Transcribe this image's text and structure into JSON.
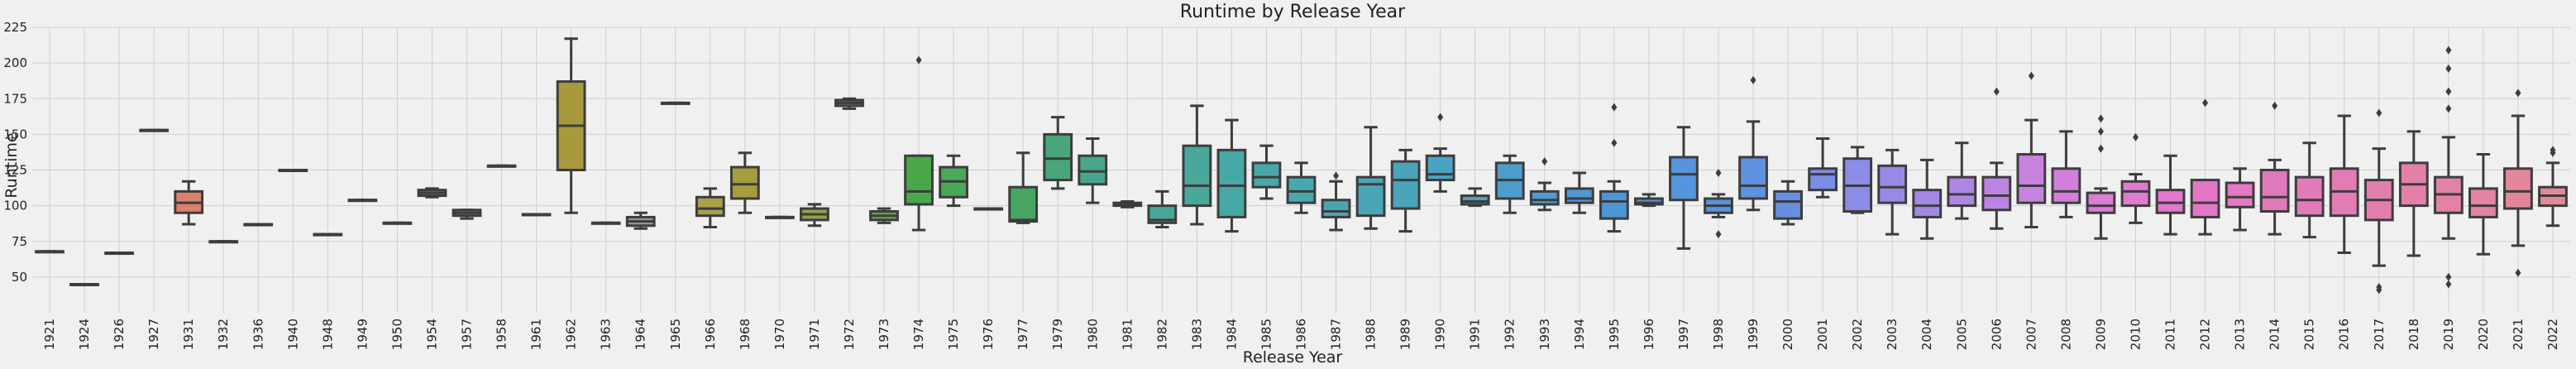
{
  "chart_data": {
    "type": "box",
    "title": "Runtime by Release Year",
    "xlabel": "Release Year",
    "ylabel": "Runtime",
    "ylim": [
      25,
      225
    ],
    "yticks": [
      50,
      75,
      100,
      125,
      150,
      175,
      200,
      225
    ],
    "grid": true,
    "categories": [
      "1921",
      "1924",
      "1926",
      "1927",
      "1931",
      "1932",
      "1936",
      "1940",
      "1948",
      "1949",
      "1950",
      "1954",
      "1957",
      "1958",
      "1961",
      "1962",
      "1963",
      "1964",
      "1965",
      "1966",
      "1968",
      "1970",
      "1971",
      "1972",
      "1973",
      "1974",
      "1975",
      "1976",
      "1977",
      "1979",
      "1980",
      "1981",
      "1982",
      "1983",
      "1984",
      "1985",
      "1986",
      "1987",
      "1988",
      "1989",
      "1990",
      "1991",
      "1992",
      "1993",
      "1994",
      "1995",
      "1996",
      "1997",
      "1998",
      "1999",
      "2000",
      "2001",
      "2002",
      "2003",
      "2004",
      "2005",
      "2006",
      "2007",
      "2008",
      "2009",
      "2010",
      "2011",
      "2012",
      "2013",
      "2014",
      "2015",
      "2016",
      "2017",
      "2018",
      "2019",
      "2020",
      "2021",
      "2022"
    ],
    "colors": [
      "#5a5a5a",
      "#5a5a5a",
      "#5a5a5a",
      "#5a5a5a",
      "#d9826a",
      "#5a5a5a",
      "#5a5a5a",
      "#5a5a5a",
      "#5a5a5a",
      "#5a5a5a",
      "#5a5a5a",
      "#7d7d7d",
      "#7d7d7d",
      "#5a5a5a",
      "#5a5a5a",
      "#a89a3c",
      "#5a5a5a",
      "#9a9a9a",
      "#5a5a5a",
      "#a8a04a",
      "#a49e3e",
      "#5a5a5a",
      "#8fa24a",
      "#7d7d7d",
      "#6aa44a",
      "#4aa84a",
      "#4aa858",
      "#5a5a5a",
      "#48a662",
      "#48a67a",
      "#48a68c",
      "#5a5a5a",
      "#48a698",
      "#48a89c",
      "#48a8a6",
      "#48a8a8",
      "#48a8ae",
      "#48a6b2",
      "#4aa6b6",
      "#4aa4ba",
      "#4ca2c2",
      "#4ea0c8",
      "#4e9ecc",
      "#4e9cd0",
      "#4e98d4",
      "#4c96d8",
      "#5094da",
      "#5694dc",
      "#5a92de",
      "#6090e0",
      "#688ee2",
      "#7a8ee4",
      "#8a8ce6",
      "#968ae6",
      "#a488e4",
      "#b086e4",
      "#bc84e2",
      "#c882e0",
      "#d47edc",
      "#dc7cd6",
      "#e07ad2",
      "#e278cc",
      "#e476c8",
      "#e478c2",
      "#e278bc",
      "#e27ab8",
      "#e27cb2",
      "#e27eae",
      "#e280aa",
      "#e282a6",
      "#e284a2",
      "#e2869e",
      "#e2889a"
    ],
    "boxes": [
      {
        "year": "1921",
        "min": 68,
        "q1": 68,
        "median": 68,
        "q3": 68,
        "max": 68,
        "outliers": []
      },
      {
        "year": "1924",
        "min": 45,
        "q1": 45,
        "median": 45,
        "q3": 45,
        "max": 45,
        "outliers": []
      },
      {
        "year": "1926",
        "min": 67,
        "q1": 67,
        "median": 67,
        "q3": 67,
        "max": 67,
        "outliers": []
      },
      {
        "year": "1927",
        "min": 153,
        "q1": 153,
        "median": 153,
        "q3": 153,
        "max": 153,
        "outliers": []
      },
      {
        "year": "1931",
        "min": 87,
        "q1": 95,
        "median": 102,
        "q3": 110,
        "max": 117,
        "outliers": []
      },
      {
        "year": "1932",
        "min": 75,
        "q1": 75,
        "median": 75,
        "q3": 75,
        "max": 75,
        "outliers": []
      },
      {
        "year": "1936",
        "min": 87,
        "q1": 87,
        "median": 87,
        "q3": 87,
        "max": 87,
        "outliers": []
      },
      {
        "year": "1940",
        "min": 125,
        "q1": 125,
        "median": 125,
        "q3": 125,
        "max": 125,
        "outliers": []
      },
      {
        "year": "1948",
        "min": 80,
        "q1": 80,
        "median": 80,
        "q3": 80,
        "max": 80,
        "outliers": []
      },
      {
        "year": "1949",
        "min": 104,
        "q1": 104,
        "median": 104,
        "q3": 104,
        "max": 104,
        "outliers": []
      },
      {
        "year": "1950",
        "min": 88,
        "q1": 88,
        "median": 88,
        "q3": 88,
        "max": 88,
        "outliers": []
      },
      {
        "year": "1954",
        "min": 106,
        "q1": 107,
        "median": 109,
        "q3": 111,
        "max": 112,
        "outliers": []
      },
      {
        "year": "1957",
        "min": 91,
        "q1": 93,
        "median": 95,
        "q3": 97,
        "max": 97,
        "outliers": []
      },
      {
        "year": "1958",
        "min": 128,
        "q1": 128,
        "median": 128,
        "q3": 128,
        "max": 128,
        "outliers": []
      },
      {
        "year": "1961",
        "min": 94,
        "q1": 94,
        "median": 94,
        "q3": 94,
        "max": 94,
        "outliers": []
      },
      {
        "year": "1962",
        "min": 95,
        "q1": 125,
        "median": 156,
        "q3": 187,
        "max": 217,
        "outliers": []
      },
      {
        "year": "1963",
        "min": 88,
        "q1": 88,
        "median": 88,
        "q3": 88,
        "max": 88,
        "outliers": []
      },
      {
        "year": "1964",
        "min": 84,
        "q1": 86,
        "median": 89,
        "q3": 92,
        "max": 95,
        "outliers": []
      },
      {
        "year": "1965",
        "min": 172,
        "q1": 172,
        "median": 172,
        "q3": 172,
        "max": 172,
        "outliers": []
      },
      {
        "year": "1966",
        "min": 85,
        "q1": 93,
        "median": 98,
        "q3": 106,
        "max": 112,
        "outliers": []
      },
      {
        "year": "1968",
        "min": 95,
        "q1": 105,
        "median": 115,
        "q3": 127,
        "max": 137,
        "outliers": []
      },
      {
        "year": "1970",
        "min": 92,
        "q1": 92,
        "median": 92,
        "q3": 92,
        "max": 92,
        "outliers": []
      },
      {
        "year": "1971",
        "min": 86,
        "q1": 90,
        "median": 94,
        "q3": 98,
        "max": 101,
        "outliers": []
      },
      {
        "year": "1972",
        "min": 168,
        "q1": 170,
        "median": 172,
        "q3": 174,
        "max": 175,
        "outliers": []
      },
      {
        "year": "1973",
        "min": 88,
        "q1": 90,
        "median": 93,
        "q3": 96,
        "max": 98,
        "outliers": []
      },
      {
        "year": "1974",
        "min": 83,
        "q1": 101,
        "median": 110,
        "q3": 135,
        "max": 135,
        "outliers": [
          202
        ]
      },
      {
        "year": "1975",
        "min": 100,
        "q1": 106,
        "median": 117,
        "q3": 127,
        "max": 135,
        "outliers": []
      },
      {
        "year": "1976",
        "min": 98,
        "q1": 98,
        "median": 98,
        "q3": 98,
        "max": 98,
        "outliers": []
      },
      {
        "year": "1977",
        "min": 88,
        "q1": 89,
        "median": 90,
        "q3": 113,
        "max": 137,
        "outliers": []
      },
      {
        "year": "1979",
        "min": 112,
        "q1": 118,
        "median": 133,
        "q3": 150,
        "max": 162,
        "outliers": []
      },
      {
        "year": "1980",
        "min": 102,
        "q1": 115,
        "median": 124,
        "q3": 135,
        "max": 147,
        "outliers": []
      },
      {
        "year": "1981",
        "min": 99,
        "q1": 100,
        "median": 101,
        "q3": 102,
        "max": 103,
        "outliers": []
      },
      {
        "year": "1982",
        "min": 85,
        "q1": 88,
        "median": 90,
        "q3": 100,
        "max": 110,
        "outliers": []
      },
      {
        "year": "1983",
        "min": 87,
        "q1": 100,
        "median": 114,
        "q3": 142,
        "max": 170,
        "outliers": []
      },
      {
        "year": "1984",
        "min": 82,
        "q1": 92,
        "median": 114,
        "q3": 139,
        "max": 160,
        "outliers": []
      },
      {
        "year": "1985",
        "min": 105,
        "q1": 113,
        "median": 120,
        "q3": 130,
        "max": 142,
        "outliers": []
      },
      {
        "year": "1986",
        "min": 95,
        "q1": 102,
        "median": 110,
        "q3": 120,
        "max": 130,
        "outliers": []
      },
      {
        "year": "1987",
        "min": 83,
        "q1": 92,
        "median": 96,
        "q3": 104,
        "max": 117,
        "outliers": [
          121
        ]
      },
      {
        "year": "1988",
        "min": 84,
        "q1": 93,
        "median": 115,
        "q3": 120,
        "max": 155,
        "outliers": []
      },
      {
        "year": "1989",
        "min": 82,
        "q1": 98,
        "median": 118,
        "q3": 131,
        "max": 139,
        "outliers": []
      },
      {
        "year": "1990",
        "min": 110,
        "q1": 118,
        "median": 122,
        "q3": 135,
        "max": 140,
        "outliers": [
          162
        ]
      },
      {
        "year": "1991",
        "min": 100,
        "q1": 101,
        "median": 103,
        "q3": 107,
        "max": 112,
        "outliers": []
      },
      {
        "year": "1992",
        "min": 95,
        "q1": 105,
        "median": 118,
        "q3": 130,
        "max": 135,
        "outliers": []
      },
      {
        "year": "1993",
        "min": 97,
        "q1": 101,
        "median": 104,
        "q3": 110,
        "max": 116,
        "outliers": [
          131
        ]
      },
      {
        "year": "1994",
        "min": 95,
        "q1": 102,
        "median": 105,
        "q3": 112,
        "max": 123,
        "outliers": []
      },
      {
        "year": "1995",
        "min": 82,
        "q1": 91,
        "median": 103,
        "q3": 110,
        "max": 117,
        "outliers": [
          144,
          169
        ]
      },
      {
        "year": "1996",
        "min": 100,
        "q1": 101,
        "median": 102,
        "q3": 105,
        "max": 108,
        "outliers": []
      },
      {
        "year": "1997",
        "min": 70,
        "q1": 104,
        "median": 122,
        "q3": 134,
        "max": 155,
        "outliers": []
      },
      {
        "year": "1998",
        "min": 92,
        "q1": 95,
        "median": 100,
        "q3": 105,
        "max": 108,
        "outliers": [
          80,
          123
        ]
      },
      {
        "year": "1999",
        "min": 97,
        "q1": 105,
        "median": 114,
        "q3": 134,
        "max": 159,
        "outliers": [
          188
        ]
      },
      {
        "year": "2000",
        "min": 87,
        "q1": 91,
        "median": 103,
        "q3": 110,
        "max": 117,
        "outliers": []
      },
      {
        "year": "2001",
        "min": 106,
        "q1": 111,
        "median": 122,
        "q3": 126,
        "max": 147,
        "outliers": []
      },
      {
        "year": "2002",
        "min": 95,
        "q1": 96,
        "median": 114,
        "q3": 133,
        "max": 141,
        "outliers": []
      },
      {
        "year": "2003",
        "min": 80,
        "q1": 102,
        "median": 113,
        "q3": 128,
        "max": 139,
        "outliers": []
      },
      {
        "year": "2004",
        "min": 77,
        "q1": 92,
        "median": 100,
        "q3": 111,
        "max": 132,
        "outliers": []
      },
      {
        "year": "2005",
        "min": 91,
        "q1": 100,
        "median": 108,
        "q3": 120,
        "max": 144,
        "outliers": []
      },
      {
        "year": "2006",
        "min": 84,
        "q1": 97,
        "median": 107,
        "q3": 120,
        "max": 130,
        "outliers": [
          180
        ]
      },
      {
        "year": "2007",
        "min": 85,
        "q1": 102,
        "median": 114,
        "q3": 136,
        "max": 160,
        "outliers": [
          191
        ]
      },
      {
        "year": "2008",
        "min": 92,
        "q1": 102,
        "median": 110,
        "q3": 126,
        "max": 152,
        "outliers": []
      },
      {
        "year": "2009",
        "min": 77,
        "q1": 95,
        "median": 100,
        "q3": 109,
        "max": 112,
        "outliers": [
          140,
          152,
          161
        ]
      },
      {
        "year": "2010",
        "min": 88,
        "q1": 100,
        "median": 110,
        "q3": 117,
        "max": 122,
        "outliers": [
          148
        ]
      },
      {
        "year": "2011",
        "min": 80,
        "q1": 95,
        "median": 102,
        "q3": 111,
        "max": 135,
        "outliers": []
      },
      {
        "year": "2012",
        "min": 80,
        "q1": 92,
        "median": 102,
        "q3": 118,
        "max": 118,
        "outliers": [
          172
        ]
      },
      {
        "year": "2013",
        "min": 83,
        "q1": 99,
        "median": 106,
        "q3": 116,
        "max": 126,
        "outliers": []
      },
      {
        "year": "2014",
        "min": 80,
        "q1": 96,
        "median": 106,
        "q3": 125,
        "max": 132,
        "outliers": [
          170
        ]
      },
      {
        "year": "2015",
        "min": 78,
        "q1": 93,
        "median": 104,
        "q3": 120,
        "max": 144,
        "outliers": []
      },
      {
        "year": "2016",
        "min": 67,
        "q1": 93,
        "median": 110,
        "q3": 126,
        "max": 163,
        "outliers": []
      },
      {
        "year": "2017",
        "min": 58,
        "q1": 90,
        "median": 104,
        "q3": 118,
        "max": 140,
        "outliers": [
          41,
          43,
          165
        ]
      },
      {
        "year": "2018",
        "min": 65,
        "q1": 100,
        "median": 115,
        "q3": 130,
        "max": 152,
        "outliers": []
      },
      {
        "year": "2019",
        "min": 77,
        "q1": 95,
        "median": 108,
        "q3": 120,
        "max": 148,
        "outliers": [
          45,
          50,
          168,
          180,
          196,
          209
        ]
      },
      {
        "year": "2020",
        "min": 66,
        "q1": 92,
        "median": 100,
        "q3": 112,
        "max": 136,
        "outliers": []
      },
      {
        "year": "2021",
        "min": 72,
        "q1": 98,
        "median": 110,
        "q3": 126,
        "max": 163,
        "outliers": [
          53,
          179
        ]
      },
      {
        "year": "2022",
        "min": 86,
        "q1": 100,
        "median": 107,
        "q3": 113,
        "max": 130,
        "outliers": [
          137,
          139
        ]
      }
    ]
  }
}
